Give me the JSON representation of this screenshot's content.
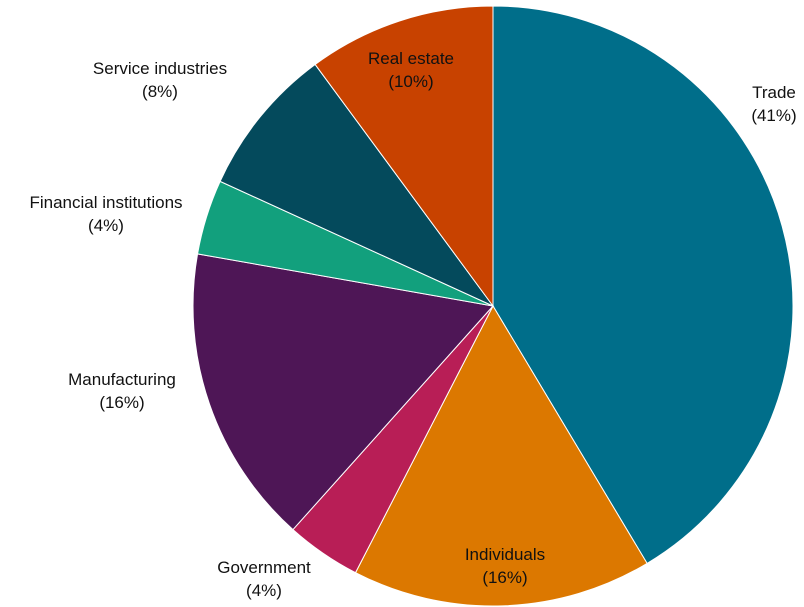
{
  "chart_data": {
    "type": "pie",
    "title": "",
    "start": "12 o'clock",
    "direction": "clockwise",
    "slices": [
      {
        "label": "Trade",
        "pct_text": "(41%)",
        "value": 41,
        "color": "#006E8A",
        "label_color": "#111111"
      },
      {
        "label": "Individuals",
        "pct_text": "(16%)",
        "value": 16,
        "color": "#DC7800",
        "label_color": "#111111"
      },
      {
        "label": "Government",
        "pct_text": "(4%)",
        "value": 4,
        "color": "#B81E56",
        "label_color": "#111111"
      },
      {
        "label": "Manufacturing",
        "pct_text": "(16%)",
        "value": 16,
        "color": "#4E1656",
        "label_color": "#111111"
      },
      {
        "label": "Financial institutions",
        "pct_text": "(4%)",
        "value": 4,
        "color": "#12A07D",
        "label_color": "#111111"
      },
      {
        "label": "Service industries",
        "pct_text": "(8%)",
        "value": 8,
        "color": "#044A5C",
        "label_color": "#111111"
      },
      {
        "label": "Real estate",
        "pct_text": "(10%)",
        "value": 10,
        "color": "#C84200",
        "label_color": "#111111"
      }
    ]
  }
}
